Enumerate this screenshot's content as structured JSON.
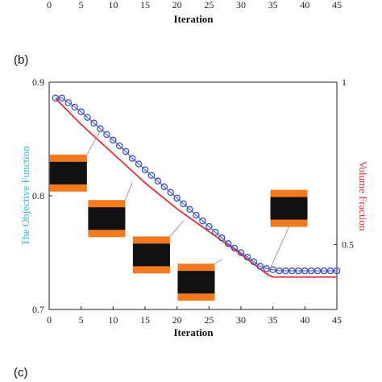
{
  "panel_labels": {
    "b": "(b)",
    "c": "(c)"
  },
  "top_axis": {
    "xlabel": "Iteration",
    "ticks": [
      "0",
      "5",
      "10",
      "15",
      "20",
      "25",
      "30",
      "35",
      "40",
      "45"
    ]
  },
  "colors": {
    "objective": "#3a4fc4",
    "objective_axis": "#2fb8e0",
    "volume": "#e0303a",
    "volume_axis": "#e0303a",
    "inset_band": "#f47a20",
    "inset_core": "#111111"
  },
  "chart_data": {
    "type": "line",
    "xlabel": "Iteration",
    "ylabel": "The Objective Function",
    "y2label": "Volume Fraction",
    "xlim": [
      0,
      45
    ],
    "ylim": [
      0.7,
      0.9
    ],
    "y2lim": [
      0.3,
      1.0
    ],
    "xticks": [
      0,
      5,
      10,
      15,
      20,
      25,
      30,
      35,
      40,
      45
    ],
    "yticks": [
      0.7,
      0.8,
      0.9
    ],
    "y2ticks": [
      0.5,
      1
    ],
    "y2tick_labels": [
      "0.5",
      "1"
    ],
    "grid": false,
    "series": [
      {
        "name": "",
        "axis": "left",
        "marker": "circle",
        "x": [
          1,
          2,
          3,
          4,
          5,
          6,
          7,
          8,
          9,
          10,
          11,
          12,
          13,
          14,
          15,
          16,
          17,
          18,
          19,
          20,
          21,
          22,
          23,
          24,
          25,
          26,
          27,
          28,
          29,
          30,
          31,
          32,
          33,
          34,
          35,
          36,
          37,
          38,
          39,
          40,
          41,
          42,
          43,
          44,
          45
        ],
        "y": [
          0.886,
          0.886,
          0.882,
          0.878,
          0.874,
          0.869,
          0.864,
          0.859,
          0.854,
          0.849,
          0.844,
          0.839,
          0.833,
          0.828,
          0.823,
          0.818,
          0.813,
          0.808,
          0.803,
          0.798,
          0.793,
          0.788,
          0.783,
          0.778,
          0.773,
          0.768,
          0.763,
          0.758,
          0.754,
          0.75,
          0.746,
          0.742,
          0.738,
          0.736,
          0.735,
          0.734,
          0.734,
          0.734,
          0.734,
          0.734,
          0.734,
          0.734,
          0.734,
          0.734,
          0.734
        ]
      },
      {
        "name": "",
        "axis": "right",
        "marker": "none",
        "x": [
          1,
          2,
          5,
          10,
          15,
          20,
          25,
          30,
          34,
          35,
          36,
          40,
          45
        ],
        "y": [
          0.95,
          0.93,
          0.87,
          0.78,
          0.69,
          0.61,
          0.54,
          0.47,
          0.41,
          0.4,
          0.4,
          0.4,
          0.4
        ]
      }
    ],
    "insets": [
      {
        "x": 3.0,
        "y": 0.82,
        "line_to": [
          8,
          0.857
        ]
      },
      {
        "x": 9.0,
        "y": 0.78,
        "line_to": [
          13,
          0.812
        ]
      },
      {
        "x": 16.0,
        "y": 0.748,
        "line_to": [
          21,
          0.778
        ]
      },
      {
        "x": 23.0,
        "y": 0.724,
        "line_to": [
          27,
          0.744
        ]
      },
      {
        "x": 37.5,
        "y": 0.789,
        "line_to": [
          34,
          0.4
        ]
      }
    ]
  }
}
